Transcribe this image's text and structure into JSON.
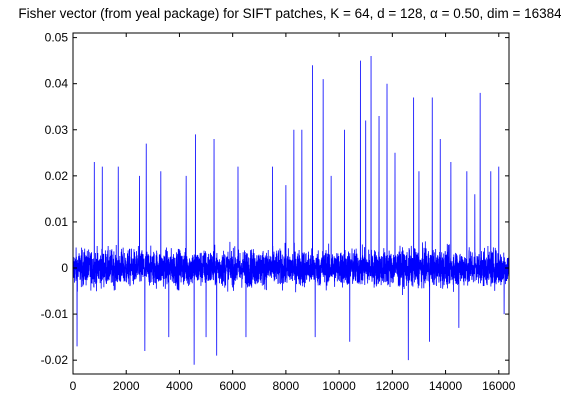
{
  "chart_data": {
    "type": "line",
    "title": "Fisher vector (from yeal package) for SIFT patches, K = 64, d = 128, α = 0.50, dim = 16384",
    "xlabel": "",
    "ylabel": "",
    "xlim": [
      0,
      16384
    ],
    "ylim": [
      -0.023,
      0.051
    ],
    "xticks": [
      0,
      2000,
      4000,
      6000,
      8000,
      10000,
      12000,
      14000,
      16000
    ],
    "xtick_labels": [
      "0",
      "2000",
      "4000",
      "6000",
      "8000",
      "10000",
      "12000",
      "14000",
      "16000"
    ],
    "yticks": [
      -0.02,
      -0.01,
      0,
      0.01,
      0.02,
      0.03,
      0.04,
      0.05
    ],
    "ytick_labels": [
      "-0.02",
      "-0.01",
      "0",
      "0.01",
      "0.02",
      "0.03",
      "0.04",
      "0.05"
    ],
    "grid": false,
    "series": [
      {
        "color": "#0000ff",
        "noise_amplitude": 0.007,
        "spikes": [
          {
            "x": 150,
            "y": -0.017
          },
          {
            "x": 800,
            "y": 0.023
          },
          {
            "x": 1100,
            "y": 0.022
          },
          {
            "x": 1700,
            "y": 0.022
          },
          {
            "x": 2500,
            "y": 0.02
          },
          {
            "x": 2700,
            "y": -0.018
          },
          {
            "x": 2750,
            "y": 0.027
          },
          {
            "x": 3300,
            "y": 0.021
          },
          {
            "x": 3600,
            "y": -0.015
          },
          {
            "x": 4250,
            "y": 0.02
          },
          {
            "x": 4550,
            "y": -0.021
          },
          {
            "x": 4600,
            "y": 0.029
          },
          {
            "x": 5000,
            "y": -0.015
          },
          {
            "x": 5300,
            "y": 0.028
          },
          {
            "x": 5400,
            "y": -0.019
          },
          {
            "x": 6200,
            "y": 0.022
          },
          {
            "x": 6500,
            "y": -0.015
          },
          {
            "x": 7500,
            "y": 0.022
          },
          {
            "x": 8000,
            "y": 0.018
          },
          {
            "x": 8300,
            "y": 0.03
          },
          {
            "x": 8600,
            "y": 0.03
          },
          {
            "x": 9000,
            "y": 0.044
          },
          {
            "x": 9100,
            "y": -0.015
          },
          {
            "x": 9400,
            "y": 0.041
          },
          {
            "x": 9700,
            "y": 0.02
          },
          {
            "x": 10200,
            "y": 0.03
          },
          {
            "x": 10400,
            "y": -0.016
          },
          {
            "x": 10800,
            "y": 0.045
          },
          {
            "x": 11000,
            "y": 0.032
          },
          {
            "x": 11200,
            "y": 0.046
          },
          {
            "x": 11500,
            "y": 0.033
          },
          {
            "x": 11800,
            "y": 0.04
          },
          {
            "x": 12100,
            "y": 0.025
          },
          {
            "x": 12600,
            "y": -0.02
          },
          {
            "x": 12800,
            "y": 0.037
          },
          {
            "x": 13000,
            "y": 0.021
          },
          {
            "x": 13400,
            "y": -0.016
          },
          {
            "x": 13500,
            "y": 0.037
          },
          {
            "x": 13800,
            "y": 0.028
          },
          {
            "x": 14200,
            "y": 0.023
          },
          {
            "x": 14500,
            "y": -0.013
          },
          {
            "x": 14800,
            "y": 0.021
          },
          {
            "x": 15100,
            "y": 0.016
          },
          {
            "x": 15300,
            "y": 0.038
          },
          {
            "x": 15700,
            "y": 0.021
          },
          {
            "x": 16000,
            "y": 0.022
          },
          {
            "x": 16200,
            "y": -0.01
          }
        ]
      }
    ]
  }
}
